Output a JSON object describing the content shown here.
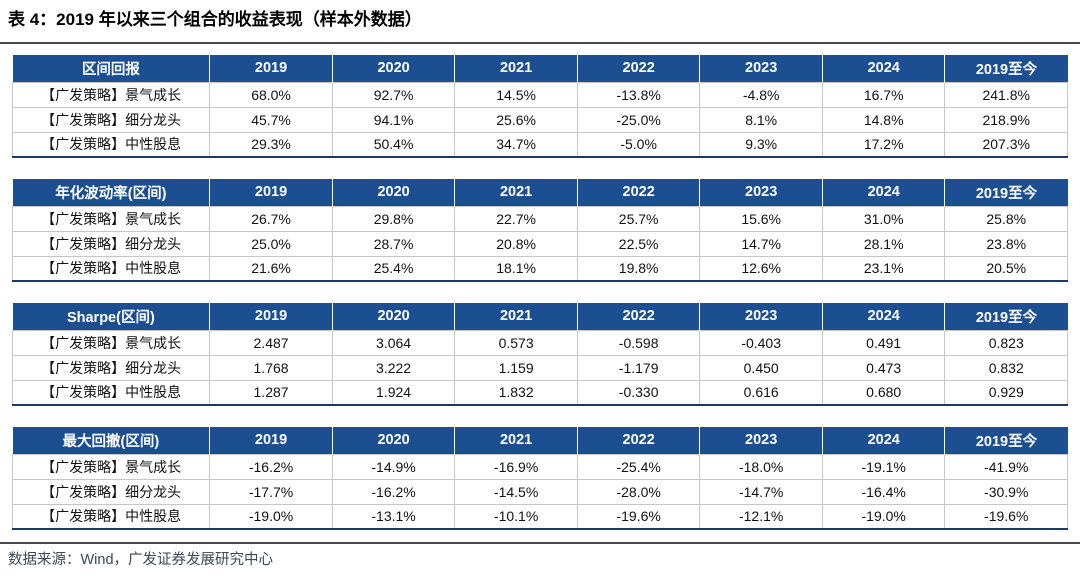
{
  "page": {
    "title": "表 4：2019 年以来三个组合的收益表现（样本外数据）",
    "source": "数据来源：Wind，广发证券发展研究中心"
  },
  "colors": {
    "header_bg": "#1B4F91",
    "header_text": "#FFFFFF",
    "table_bottom_border": "#1F3864",
    "grid_line": "#C6C6C6",
    "source_text": "#3B4656",
    "title_text": "#000000"
  },
  "columns": [
    "2019",
    "2020",
    "2021",
    "2022",
    "2023",
    "2024",
    "2019至今"
  ],
  "tables": [
    {
      "metric": "区间回报",
      "rows": [
        {
          "label": "【广发策略】景气成长",
          "values": [
            "68.0%",
            "92.7%",
            "14.5%",
            "-13.8%",
            "-4.8%",
            "16.7%",
            "241.8%"
          ]
        },
        {
          "label": "【广发策略】细分龙头",
          "values": [
            "45.7%",
            "94.1%",
            "25.6%",
            "-25.0%",
            "8.1%",
            "14.8%",
            "218.9%"
          ]
        },
        {
          "label": "【广发策略】中性股息",
          "values": [
            "29.3%",
            "50.4%",
            "34.7%",
            "-5.0%",
            "9.3%",
            "17.2%",
            "207.3%"
          ]
        }
      ]
    },
    {
      "metric": "年化波动率(区间)",
      "rows": [
        {
          "label": "【广发策略】景气成长",
          "values": [
            "26.7%",
            "29.8%",
            "22.7%",
            "25.7%",
            "15.6%",
            "31.0%",
            "25.8%"
          ]
        },
        {
          "label": "【广发策略】细分龙头",
          "values": [
            "25.0%",
            "28.7%",
            "20.8%",
            "22.5%",
            "14.7%",
            "28.1%",
            "23.8%"
          ]
        },
        {
          "label": "【广发策略】中性股息",
          "values": [
            "21.6%",
            "25.4%",
            "18.1%",
            "19.8%",
            "12.6%",
            "23.1%",
            "20.5%"
          ]
        }
      ]
    },
    {
      "metric": "Sharpe(区间)",
      "rows": [
        {
          "label": "【广发策略】景气成长",
          "values": [
            "2.487",
            "3.064",
            "0.573",
            "-0.598",
            "-0.403",
            "0.491",
            "0.823"
          ]
        },
        {
          "label": "【广发策略】细分龙头",
          "values": [
            "1.768",
            "3.222",
            "1.159",
            "-1.179",
            "0.450",
            "0.473",
            "0.832"
          ]
        },
        {
          "label": "【广发策略】中性股息",
          "values": [
            "1.287",
            "1.924",
            "1.832",
            "-0.330",
            "0.616",
            "0.680",
            "0.929"
          ]
        }
      ]
    },
    {
      "metric": "最大回撤(区间)",
      "rows": [
        {
          "label": "【广发策略】景气成长",
          "values": [
            "-16.2%",
            "-14.9%",
            "-16.9%",
            "-25.4%",
            "-18.0%",
            "-19.1%",
            "-41.9%"
          ]
        },
        {
          "label": "【广发策略】细分龙头",
          "values": [
            "-17.7%",
            "-16.2%",
            "-14.5%",
            "-28.0%",
            "-14.7%",
            "-16.4%",
            "-30.9%"
          ]
        },
        {
          "label": "【广发策略】中性股息",
          "values": [
            "-19.0%",
            "-13.1%",
            "-10.1%",
            "-19.6%",
            "-12.1%",
            "-19.0%",
            "-19.6%"
          ]
        }
      ]
    }
  ]
}
